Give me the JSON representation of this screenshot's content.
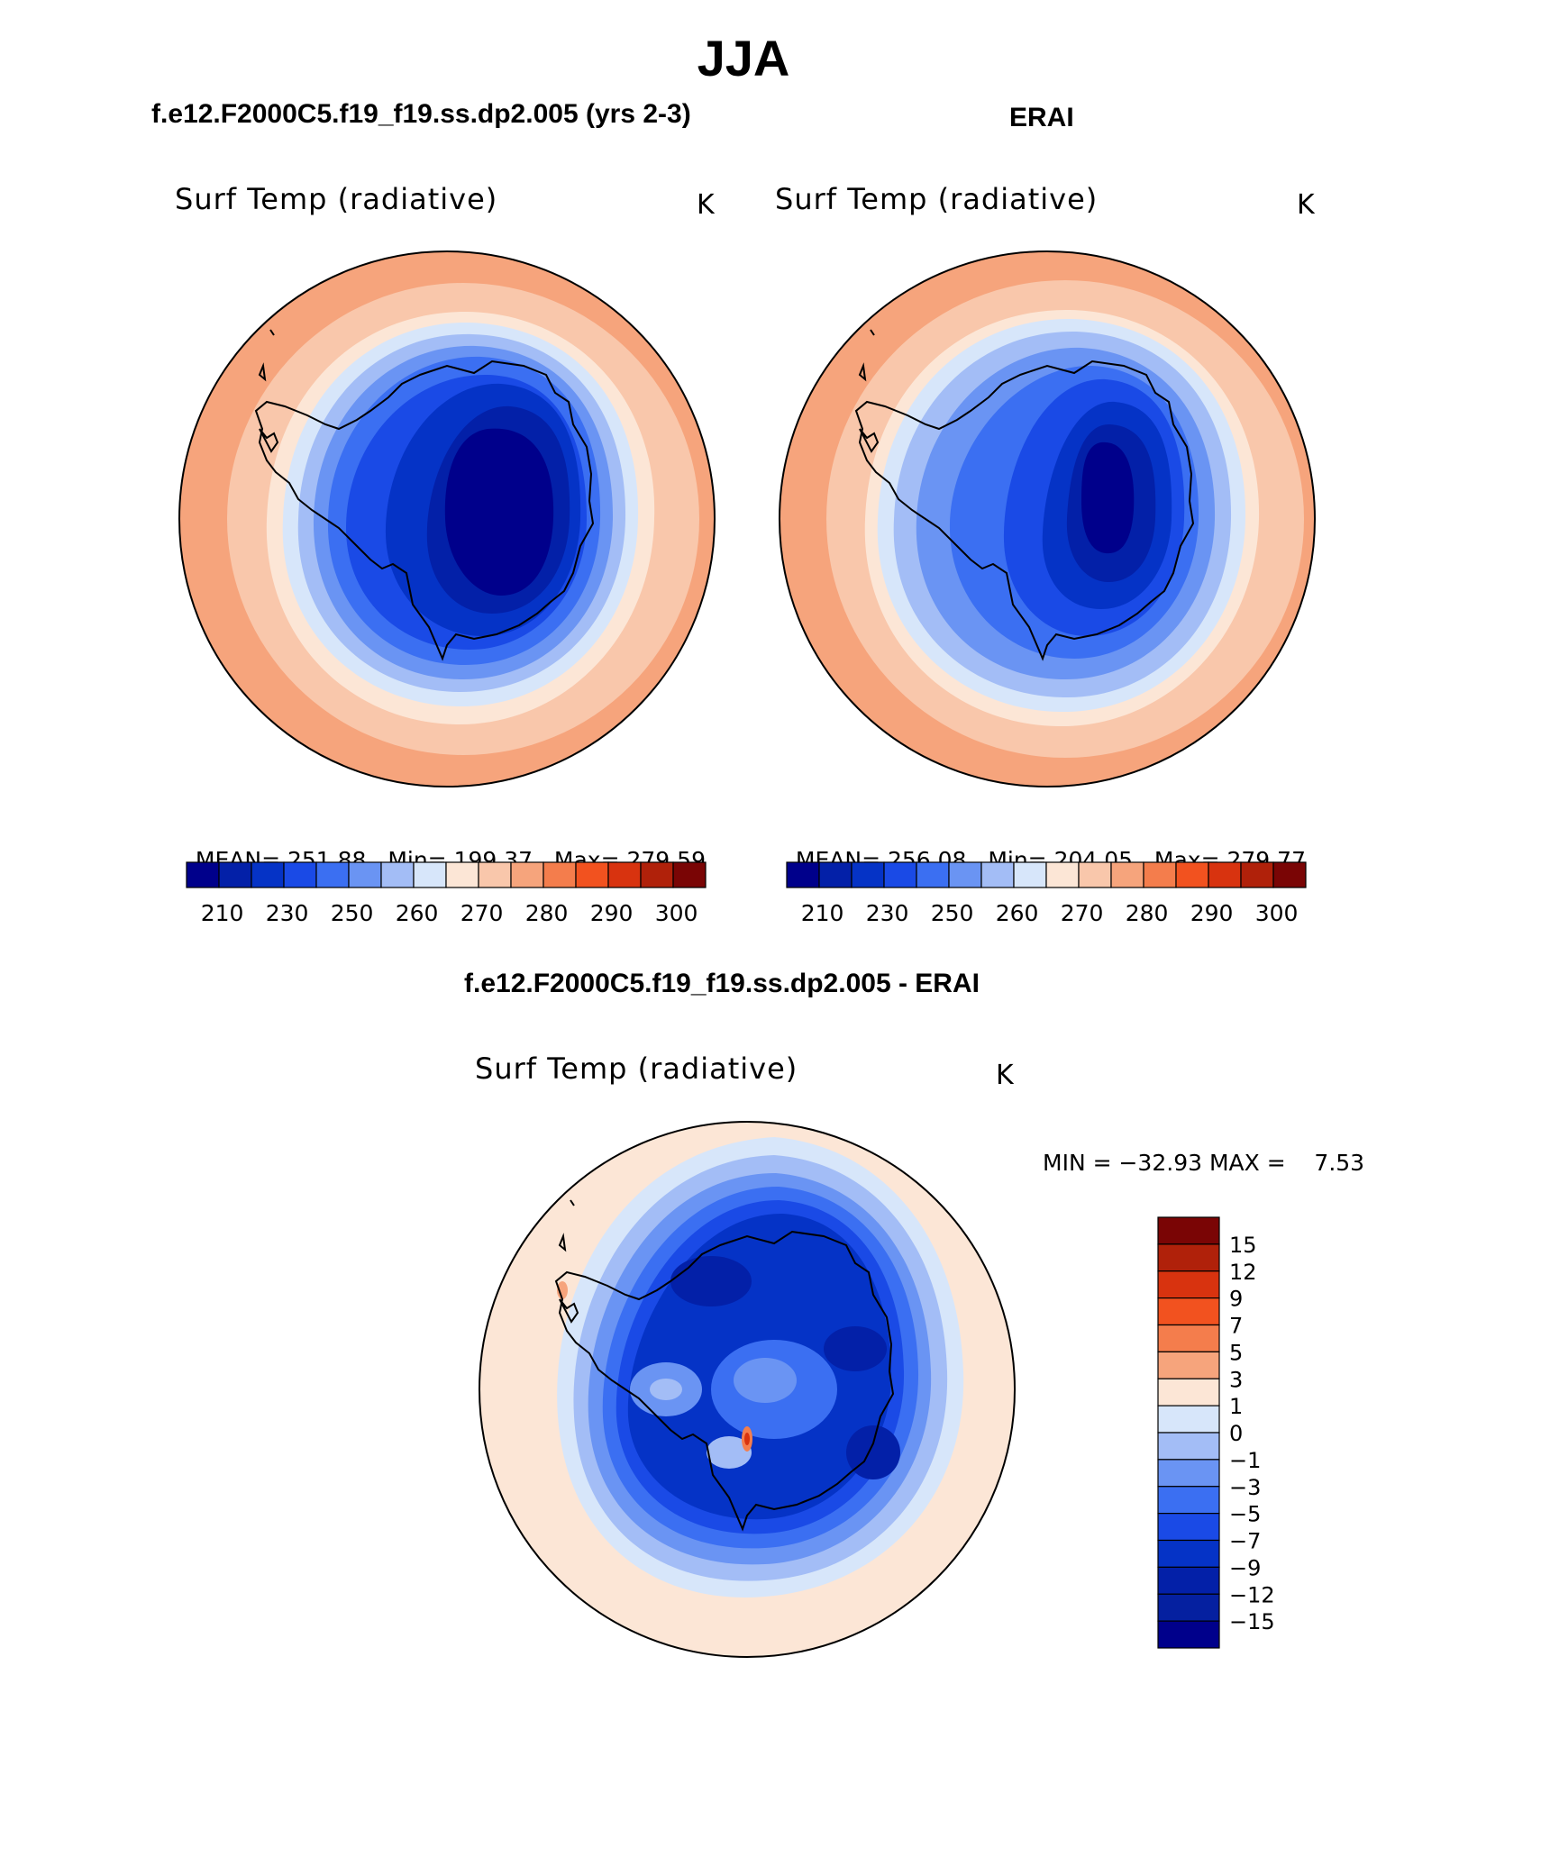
{
  "figure": {
    "title": "JJA",
    "case_label": "f.e12.F2000C5.f19_f19.ss.dp2.005 (yrs 2-3)",
    "obs_label": "ERAI",
    "diff_label": "f.e12.F2000C5.f19_f19.ss.dp2.005 - ERAI"
  },
  "panels": [
    {
      "id": "model",
      "variable": "Surf Temp (radiative)",
      "units": "K",
      "mean_label": "MEAN=",
      "mean": "251.88",
      "min_label": "Min=",
      "min": "199.37",
      "max_label": "Max=",
      "max": "279.59"
    },
    {
      "id": "obs",
      "variable": "Surf Temp (radiative)",
      "units": "K",
      "mean_label": "MEAN=",
      "mean": "256.08",
      "min_label": "Min=",
      "min": "204.05",
      "max_label": "Max=",
      "max": "279.77"
    },
    {
      "id": "diff",
      "variable": "Surf Temp (radiative)",
      "units": "K",
      "minmax_text": "MIN = −32.93 MAX =    7.53"
    }
  ],
  "colorbar_abs": {
    "colors": [
      "#00008b",
      "#0320a8",
      "#0533c6",
      "#1a4ae6",
      "#3b6ff2",
      "#6a94f3",
      "#a3bdf6",
      "#d7e6fa",
      "#fce6d6",
      "#f9c7ab",
      "#f6a47c",
      "#f47d4c",
      "#f2521f",
      "#d8330f",
      "#b0210a",
      "#7a0505"
    ],
    "tick_labels": [
      "210",
      "230",
      "250",
      "260",
      "270",
      "280",
      "290",
      "300"
    ]
  },
  "colorbar_diff": {
    "colors": [
      "#7a0505",
      "#b0210a",
      "#d8330f",
      "#f2521f",
      "#f47d4c",
      "#f6a47c",
      "#fce6d6",
      "#d7e6fa",
      "#a3bdf6",
      "#6a94f3",
      "#3b6ff2",
      "#1a4ae6",
      "#0533c6",
      "#0320a8",
      "#0520a0",
      "#00008b"
    ],
    "tick_labels": [
      "15",
      "12",
      "9",
      "7",
      "5",
      "3",
      "1",
      "0",
      "−1",
      "−3",
      "−5",
      "−7",
      "−9",
      "−12",
      "−15"
    ]
  },
  "chart_data": [
    {
      "type": "heatmap",
      "projection": "south-polar-stereographic",
      "title": "Surf Temp (radiative)",
      "subtitle": "f.e12.F2000C5.f19_f19.ss.dp2.005 (yrs 2-3)",
      "units": "K",
      "mean": 251.88,
      "min": 199.37,
      "max": 279.59,
      "contour_levels": [
        210,
        220,
        230,
        240,
        250,
        255,
        260,
        265,
        270,
        275,
        280,
        285,
        290,
        295,
        300
      ]
    },
    {
      "type": "heatmap",
      "projection": "south-polar-stereographic",
      "title": "Surf Temp (radiative)",
      "subtitle": "ERAI",
      "units": "K",
      "mean": 256.08,
      "min": 204.05,
      "max": 279.77,
      "contour_levels": [
        210,
        220,
        230,
        240,
        250,
        255,
        260,
        265,
        270,
        275,
        280,
        285,
        290,
        295,
        300
      ]
    },
    {
      "type": "heatmap",
      "projection": "south-polar-stereographic",
      "title": "Surf Temp (radiative)",
      "subtitle": "f.e12.F2000C5.f19_f19.ss.dp2.005 - ERAI",
      "units": "K",
      "min": -32.93,
      "max": 7.53,
      "contour_levels": [
        -15,
        -12,
        -9,
        -7,
        -5,
        -3,
        -1,
        0,
        1,
        3,
        5,
        7,
        9,
        12,
        15
      ]
    }
  ]
}
